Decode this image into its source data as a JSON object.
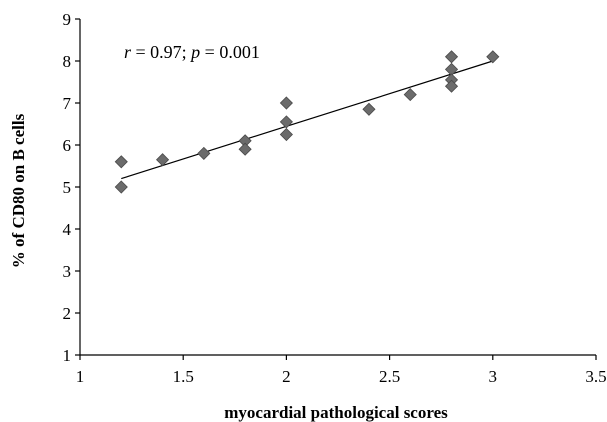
{
  "chart_data": {
    "type": "scatter",
    "xlabel": "myocardial pathological scores",
    "ylabel": "% of CD80 on B cells",
    "xlim": [
      1,
      3.5
    ],
    "ylim": [
      1,
      9
    ],
    "x_ticks": [
      1,
      1.5,
      2,
      2.5,
      3,
      3.5
    ],
    "y_ticks": [
      1,
      2,
      3,
      4,
      5,
      6,
      7,
      8,
      9
    ],
    "x_tick_labels": [
      "1",
      "1.5",
      "2",
      "2.5",
      "3",
      "3.5"
    ],
    "y_tick_labels": [
      "1",
      "2",
      "3",
      "4",
      "5",
      "6",
      "7",
      "8",
      "9"
    ],
    "grid": false,
    "marker": "diamond",
    "points": [
      {
        "x": 1.2,
        "y": 5.6
      },
      {
        "x": 1.2,
        "y": 5.0
      },
      {
        "x": 1.4,
        "y": 5.65
      },
      {
        "x": 1.6,
        "y": 5.8
      },
      {
        "x": 1.8,
        "y": 6.1
      },
      {
        "x": 1.8,
        "y": 5.9
      },
      {
        "x": 2.0,
        "y": 7.0
      },
      {
        "x": 2.0,
        "y": 6.55
      },
      {
        "x": 2.0,
        "y": 6.25
      },
      {
        "x": 2.4,
        "y": 6.85
      },
      {
        "x": 2.6,
        "y": 7.2
      },
      {
        "x": 2.8,
        "y": 8.1
      },
      {
        "x": 2.8,
        "y": 7.8
      },
      {
        "x": 2.8,
        "y": 7.55
      },
      {
        "x": 2.8,
        "y": 7.4
      },
      {
        "x": 3.0,
        "y": 8.1
      }
    ],
    "trendline": {
      "x1": 1.2,
      "y1": 5.2,
      "x2": 3.0,
      "y2": 8.0
    },
    "annotation": {
      "r_symbol": "r",
      "r_text": " = 0.97; ",
      "p_symbol": "p",
      "p_text": " = 0.001"
    }
  }
}
